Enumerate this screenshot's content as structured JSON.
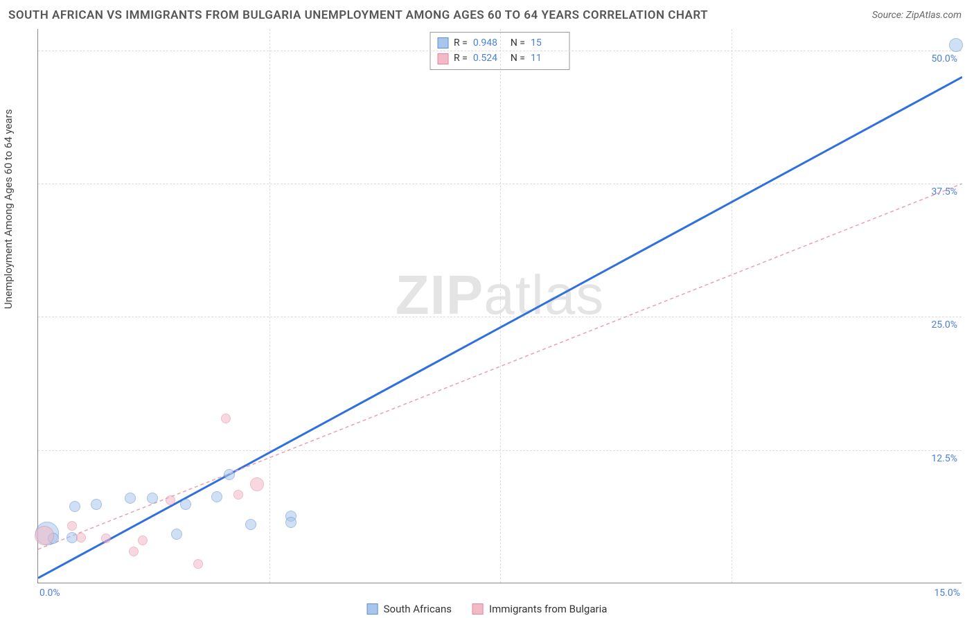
{
  "title": "SOUTH AFRICAN VS IMMIGRANTS FROM BULGARIA UNEMPLOYMENT AMONG AGES 60 TO 64 YEARS CORRELATION CHART",
  "source": "Source: ZipAtlas.com",
  "ylabel": "Unemployment Among Ages 60 to 64 years",
  "watermark_a": "ZIP",
  "watermark_b": "atlas",
  "chart": {
    "type": "scatter",
    "xlim": [
      0,
      15
    ],
    "ylim": [
      0,
      52
    ],
    "xtick_labels": [
      {
        "v": 0,
        "label": "0.0%"
      },
      {
        "v": 15,
        "label": "15.0%"
      }
    ],
    "ytick_labels": [
      {
        "v": 12.5,
        "label": "12.5%"
      },
      {
        "v": 25.0,
        "label": "25.0%"
      },
      {
        "v": 37.5,
        "label": "37.5%"
      },
      {
        "v": 50.0,
        "label": "50.0%"
      }
    ],
    "grid_h": [
      12.5,
      25.0,
      37.5,
      50.0
    ],
    "grid_v": [
      3.75,
      7.5,
      11.25
    ],
    "background_color": "#ffffff",
    "grid_color": "#dddddd",
    "series": [
      {
        "name": "South Africans",
        "fill": "#a8c5ec",
        "stroke": "#5b8fd6",
        "fill_opacity": 0.55,
        "trend": {
          "x1": 0,
          "y1": 0.5,
          "x2": 15,
          "y2": 47.5,
          "stroke": "#2f6fe0",
          "width": 3,
          "dash": "none"
        },
        "stats": {
          "R": "0.948",
          "N": "15"
        },
        "points": [
          {
            "x": 0.15,
            "y": 4.7,
            "r": 17
          },
          {
            "x": 0.25,
            "y": 4.2,
            "r": 8
          },
          {
            "x": 0.55,
            "y": 4.3,
            "r": 8
          },
          {
            "x": 0.6,
            "y": 7.2,
            "r": 8
          },
          {
            "x": 0.95,
            "y": 7.4,
            "r": 8
          },
          {
            "x": 1.5,
            "y": 8.0,
            "r": 8
          },
          {
            "x": 1.85,
            "y": 8.0,
            "r": 8
          },
          {
            "x": 2.25,
            "y": 4.6,
            "r": 8
          },
          {
            "x": 2.4,
            "y": 7.4,
            "r": 8
          },
          {
            "x": 2.9,
            "y": 8.1,
            "r": 8
          },
          {
            "x": 3.1,
            "y": 10.2,
            "r": 8
          },
          {
            "x": 3.45,
            "y": 5.5,
            "r": 8
          },
          {
            "x": 4.1,
            "y": 6.3,
            "r": 8
          },
          {
            "x": 4.1,
            "y": 5.7,
            "r": 8
          },
          {
            "x": 14.9,
            "y": 50.5,
            "r": 10
          }
        ]
      },
      {
        "name": "Immigrants from Bulgaria",
        "fill": "#f3b9c7",
        "stroke": "#e387a0",
        "fill_opacity": 0.55,
        "trend": {
          "x1": 0,
          "y1": 3.2,
          "x2": 15,
          "y2": 37.5,
          "stroke": "#e8a0b3",
          "width": 1.5,
          "dash": "5,4"
        },
        "stats": {
          "R": "0.524",
          "N": "11"
        },
        "points": [
          {
            "x": 0.1,
            "y": 4.5,
            "r": 14
          },
          {
            "x": 0.55,
            "y": 5.4,
            "r": 7
          },
          {
            "x": 0.7,
            "y": 4.3,
            "r": 7
          },
          {
            "x": 1.1,
            "y": 4.2,
            "r": 7
          },
          {
            "x": 1.55,
            "y": 3.0,
            "r": 7
          },
          {
            "x": 1.7,
            "y": 4.0,
            "r": 7
          },
          {
            "x": 2.15,
            "y": 7.8,
            "r": 7
          },
          {
            "x": 2.6,
            "y": 1.8,
            "r": 7
          },
          {
            "x": 3.05,
            "y": 15.5,
            "r": 7
          },
          {
            "x": 3.25,
            "y": 8.3,
            "r": 7
          },
          {
            "x": 3.55,
            "y": 9.3,
            "r": 10
          }
        ]
      }
    ]
  },
  "bottom_legend": [
    {
      "label": "South Africans",
      "fill": "#a8c5ec",
      "stroke": "#5b8fd6"
    },
    {
      "label": "Immigrants from Bulgaria",
      "fill": "#f3b9c7",
      "stroke": "#e387a0"
    }
  ]
}
